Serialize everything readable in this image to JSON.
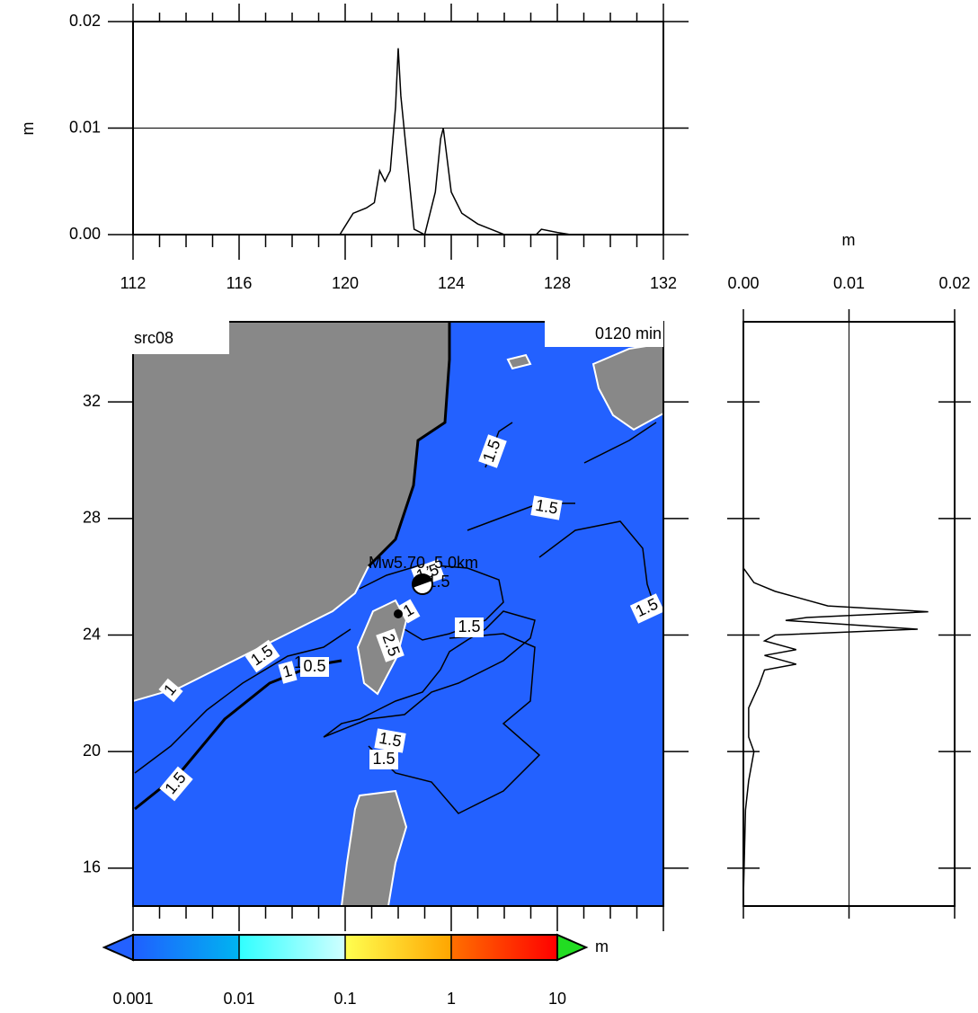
{
  "chart_data": [
    {
      "type": "line",
      "y_label": "m",
      "color": "#000000",
      "xlim": [
        112,
        132
      ],
      "xticks": [
        112,
        116,
        120,
        124,
        128,
        132
      ],
      "ylim": [
        0,
        0.02
      ],
      "yticks": [
        {
          "value": 0,
          "label": "0.00"
        },
        {
          "value": 0.01,
          "label": "0.01"
        },
        {
          "value": 0.02,
          "label": "0.02"
        }
      ],
      "grid": true,
      "x": [
        112,
        119.8,
        120.3,
        120.8,
        121.1,
        121.3,
        121.5,
        121.7,
        121.9,
        122.0,
        122.1,
        122.3,
        122.5,
        122.6,
        123.0,
        123.2,
        123.4,
        123.6,
        123.7,
        123.8,
        124.0,
        124.4,
        125.0,
        125.5,
        126.0,
        127.2,
        127.4,
        128.0,
        128.5,
        132
      ],
      "values": [
        0,
        0,
        0.002,
        0.0025,
        0.003,
        0.006,
        0.005,
        0.006,
        0.012,
        0.0175,
        0.013,
        0.008,
        0.003,
        0.0005,
        0,
        0.002,
        0.004,
        0.009,
        0.01,
        0.008,
        0.004,
        0.002,
        0.001,
        0.0005,
        0,
        0,
        0.0005,
        0.0002,
        0,
        0
      ]
    },
    {
      "type": "line",
      "orientation": "vertical",
      "x_label": "m",
      "color": "#000000",
      "xlim": [
        0,
        0.02
      ],
      "xticks": [
        {
          "value": 0,
          "label": "0.00"
        },
        {
          "value": 0.01,
          "label": "0.01"
        },
        {
          "value": 0.02,
          "label": "0.02"
        }
      ],
      "ylim": [
        14.7,
        34.75
      ],
      "grid": true,
      "y": [
        34.75,
        26.3,
        25.8,
        25.5,
        25.0,
        24.8,
        24.6,
        24.5,
        24.2,
        24.0,
        23.8,
        23.5,
        23.3,
        23.0,
        22.8,
        22.3,
        21.5,
        20.5,
        20.0,
        19.0,
        18.0,
        15.0,
        14.7
      ],
      "values": [
        0,
        0,
        0.001,
        0.003,
        0.008,
        0.0175,
        0.006,
        0.004,
        0.0165,
        0.003,
        0.002,
        0.005,
        0.002,
        0.005,
        0.002,
        0.0015,
        0.0005,
        0.0005,
        0.001,
        0.0005,
        0.0002,
        0,
        0
      ]
    },
    {
      "type": "map",
      "title": "src08",
      "time_label": "0120 min",
      "event_label": "Mw5.70, 5.0km",
      "xlim": [
        112,
        132
      ],
      "xticks": [
        112,
        116,
        120,
        124,
        128,
        132
      ],
      "ylim": [
        14.7,
        34.75
      ],
      "yticks": [
        16,
        20,
        24,
        28,
        32
      ],
      "ocean_color": "#2361ff",
      "land_color": "#888888",
      "contour_labels": [
        "1.5",
        "1.5",
        "1.5",
        "1.5",
        "1.5",
        "1",
        "1.5",
        "1",
        "1",
        "0.5",
        "1.5",
        "1",
        "2.5",
        "1.5",
        "1.5",
        "1.5"
      ]
    },
    {
      "type": "colorbar",
      "unit": "m",
      "log": true,
      "ticks": [
        {
          "value": 0.001,
          "label": "0.001"
        },
        {
          "value": 0.01,
          "label": "0.01"
        },
        {
          "value": 0.1,
          "label": "0.1"
        },
        {
          "value": 1,
          "label": "1"
        },
        {
          "value": 10,
          "label": "10"
        }
      ],
      "colors": [
        [
          "#1f5fff",
          "#00b4f0"
        ],
        [
          "#30ffff",
          "#d0ffff"
        ],
        [
          "#ffff50",
          "#ffa500"
        ],
        [
          "#ff7000",
          "#ff0000"
        ]
      ],
      "under_color": "#2361ff",
      "over_color": "#22dd22"
    }
  ]
}
